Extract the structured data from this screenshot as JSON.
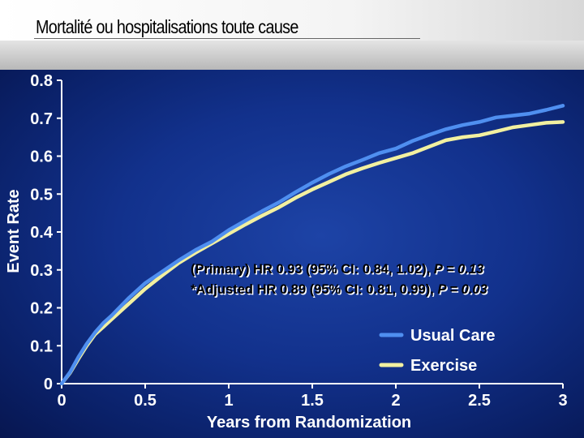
{
  "slide": {
    "title": "Mortalité ou hospitalisations toute cause"
  },
  "colors": {
    "background": "#12318c",
    "usual_care": "#4f8ff0",
    "exercise": "#f2f0a0",
    "text": "#ffffff"
  },
  "chart_data": {
    "type": "line",
    "xlabel": "Years from Randomization",
    "ylabel": "Event Rate",
    "xlim": [
      0,
      3
    ],
    "ylim": [
      0,
      0.8
    ],
    "xticks": [
      "0",
      "0.5",
      "1",
      "1.5",
      "2",
      "2.5",
      "3"
    ],
    "yticks": [
      "0",
      "0.1",
      "0.2",
      "0.3",
      "0.4",
      "0.5",
      "0.6",
      "0.7",
      "0.8"
    ],
    "grid": false,
    "legend_position": "bottom-right",
    "annotations": [
      {
        "segments": [
          "(Primary)  HR 0.93 (95% CI: 0.84, 1.02),  ",
          "P = 0.13"
        ]
      },
      {
        "segments": [
          "*Adjusted HR 0.89 (95% CI: 0.81, 0.99),  ",
          "P = 0.03"
        ]
      }
    ],
    "series": [
      {
        "name": "Usual Care",
        "color": "#4f8ff0",
        "x": [
          0,
          0.05,
          0.1,
          0.15,
          0.2,
          0.25,
          0.3,
          0.4,
          0.5,
          0.6,
          0.7,
          0.8,
          0.9,
          1.0,
          1.1,
          1.2,
          1.3,
          1.4,
          1.5,
          1.6,
          1.7,
          1.8,
          1.9,
          2.0,
          2.1,
          2.2,
          2.3,
          2.4,
          2.5,
          2.6,
          2.7,
          2.8,
          2.9,
          3.0
        ],
        "y": [
          0,
          0.03,
          0.07,
          0.105,
          0.135,
          0.16,
          0.18,
          0.225,
          0.265,
          0.295,
          0.325,
          0.352,
          0.375,
          0.405,
          0.43,
          0.455,
          0.478,
          0.505,
          0.53,
          0.553,
          0.573,
          0.59,
          0.608,
          0.62,
          0.64,
          0.656,
          0.671,
          0.682,
          0.69,
          0.702,
          0.707,
          0.712,
          0.722,
          0.733
        ]
      },
      {
        "name": "Exercise",
        "color": "#f2f0a0",
        "x": [
          0,
          0.05,
          0.1,
          0.15,
          0.2,
          0.25,
          0.3,
          0.4,
          0.5,
          0.6,
          0.7,
          0.8,
          0.9,
          1.0,
          1.1,
          1.2,
          1.3,
          1.4,
          1.5,
          1.6,
          1.7,
          1.8,
          1.9,
          2.0,
          2.1,
          2.2,
          2.3,
          2.4,
          2.5,
          2.6,
          2.7,
          2.8,
          2.9,
          3.0
        ],
        "y": [
          0,
          0.028,
          0.065,
          0.1,
          0.13,
          0.15,
          0.17,
          0.21,
          0.25,
          0.285,
          0.318,
          0.345,
          0.37,
          0.395,
          0.42,
          0.443,
          0.465,
          0.49,
          0.512,
          0.532,
          0.552,
          0.568,
          0.582,
          0.595,
          0.608,
          0.625,
          0.642,
          0.65,
          0.655,
          0.665,
          0.676,
          0.682,
          0.688,
          0.69
        ]
      }
    ]
  }
}
